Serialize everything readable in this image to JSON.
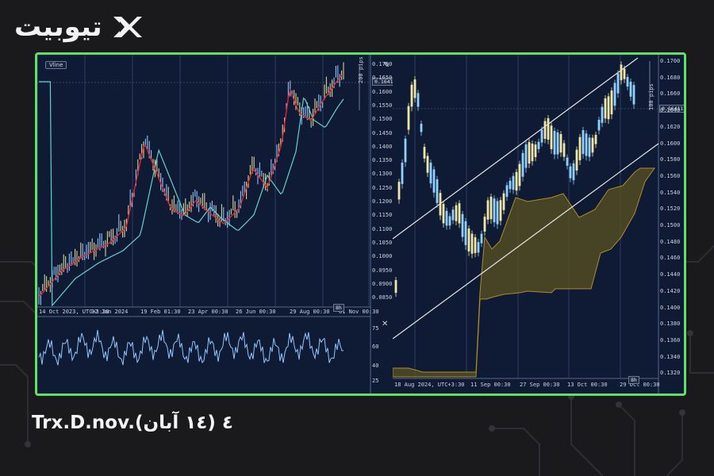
{
  "brand": {
    "name": "تیوبیت",
    "logo_icon": "x-arrows-logo"
  },
  "caption": "Trx.D.nov.٤ (١٤ آبان)",
  "left_chart": {
    "tag_label": "Vline",
    "price_tag": "0.16411",
    "pips_label": "200 pips",
    "y_ticks": [
      "0.1700",
      "0.1650",
      "0.1600",
      "0.1550",
      "0.1500",
      "0.1450",
      "0.1400",
      "0.1350",
      "0.1300",
      "0.1250",
      "0.1200",
      "0.1150",
      "0.1100",
      "0.1050",
      "0.1000",
      "0.0950",
      "0.0900",
      "0.0850"
    ],
    "x_ticks": [
      "14 Oct 2023, UTC+3:30",
      "02 Jan 2024",
      "19 Feb 01:30",
      "23 Apr 00:30",
      "26 Jun 00:30",
      "29 Aug 00:30",
      "01 Nov 00:30"
    ],
    "timeframe": "8h",
    "osc_ticks": [
      "75",
      "60",
      "40",
      "25"
    ]
  },
  "right_chart": {
    "price_tag": "0.16411",
    "pips_label": "100 pips",
    "y_ticks": [
      "0.1700",
      "0.1680",
      "0.1660",
      "0.1640",
      "0.1620",
      "0.1600",
      "0.1580",
      "0.1560",
      "0.1540",
      "0.1520",
      "0.1500",
      "0.1480",
      "0.1460",
      "0.1440",
      "0.1420",
      "0.1400",
      "0.1380",
      "0.1360",
      "0.1340",
      "0.1320"
    ],
    "x_ticks": [
      "18 Aug 2024, UTC+3:30",
      "11 Sep 00:30",
      "27 Sep 00:30",
      "13 Oct 00:30",
      "29 Oct 00:30"
    ],
    "timeframe": "8h"
  },
  "colors": {
    "frame": "#5ee06a",
    "bg": "#0f1b35",
    "ema_fast": "#e0282e",
    "ema_slow": "#5fd3d0",
    "cloud": "#5a5320",
    "osc": "#8fc6ff"
  }
}
